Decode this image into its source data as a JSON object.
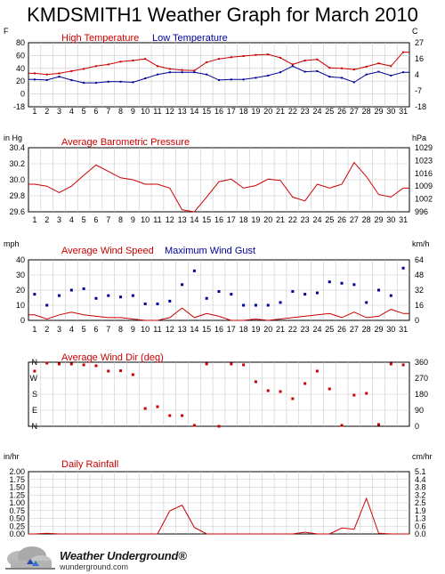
{
  "title": "KMDSMITH1 Weather Graph for March 2010",
  "footer": {
    "brand": "Weather Underground®",
    "url": "wunderground.com",
    "logo_icon": "cloud-logo-icon"
  },
  "colors": {
    "red": "#cc0000",
    "blue": "#000099",
    "grid": "#c8c8c8",
    "frame": "#000000"
  },
  "chart_data": [
    {
      "id": "temperature",
      "type": "line",
      "left_unit": "F",
      "right_unit": "C",
      "title_a": "High Temperature",
      "title_b": "Low Temperature",
      "yticks_left": [
        "80",
        "60",
        "40",
        "20",
        "0",
        "-18"
      ],
      "yticks_right": [
        "27",
        "16",
        "4",
        "-7",
        "-18"
      ],
      "ylim": [
        -18,
        97
      ],
      "x": [
        "1",
        "2",
        "3",
        "4",
        "5",
        "6",
        "7",
        "8",
        "9",
        "10",
        "11",
        "12",
        "13",
        "14",
        "15",
        "16",
        "17",
        "18",
        "19",
        "20",
        "21",
        "22",
        "23",
        "24",
        "25",
        "26",
        "27",
        "28",
        "29",
        "30",
        "31"
      ],
      "series": [
        {
          "name": "High Temperature",
          "color": "#cc0000",
          "values": [
            42,
            40,
            42,
            46,
            50,
            55,
            58,
            63,
            65,
            68,
            55,
            50,
            48,
            47,
            62,
            68,
            71,
            73,
            75,
            76,
            70,
            58,
            65,
            67,
            52,
            51,
            49,
            54,
            60,
            55,
            80
          ]
        },
        {
          "name": "Low Temperature",
          "color": "#000099",
          "values": [
            31,
            30,
            36,
            30,
            25,
            25,
            27,
            27,
            26,
            33,
            40,
            44,
            44,
            44,
            40,
            30,
            31,
            31,
            34,
            38,
            44,
            55,
            45,
            46,
            36,
            34,
            26,
            40,
            45,
            38,
            44
          ]
        }
      ]
    },
    {
      "id": "pressure",
      "type": "line",
      "left_unit": "in Hg",
      "right_unit": "hPa",
      "title_a": "Average Barometric Pressure",
      "yticks_left": [
        "30.4",
        "30.2",
        "30.0",
        "29.8",
        "29.6"
      ],
      "yticks_right": [
        "1029",
        "1023",
        "1016",
        "1009",
        "1002",
        "996"
      ],
      "ylim": [
        29.45,
        30.45
      ],
      "x": [
        "1",
        "2",
        "3",
        "4",
        "5",
        "6",
        "7",
        "8",
        "9",
        "10",
        "11",
        "12",
        "13",
        "14",
        "15",
        "16",
        "17",
        "18",
        "19",
        "20",
        "21",
        "22",
        "23",
        "24",
        "25",
        "26",
        "27",
        "28",
        "29",
        "30",
        "31"
      ],
      "series": [
        {
          "name": "Average Barometric Pressure",
          "color": "#cc0000",
          "values": [
            29.88,
            29.85,
            29.75,
            29.85,
            30.02,
            30.18,
            30.08,
            29.98,
            29.95,
            29.88,
            29.88,
            29.82,
            29.48,
            29.45,
            29.68,
            29.92,
            29.96,
            29.82,
            29.86,
            29.96,
            29.94,
            29.68,
            29.62,
            29.88,
            29.82,
            29.88,
            30.22,
            30.0,
            29.72,
            29.68,
            29.82
          ]
        }
      ]
    },
    {
      "id": "wind",
      "type": "line",
      "left_unit": "mph",
      "right_unit": "km/h",
      "title_a": "Average Wind Speed",
      "title_b": "Maximum Wind Gust",
      "yticks_left": [
        "40",
        "30",
        "20",
        "10",
        "0"
      ],
      "yticks_right": [
        "64",
        "48",
        "32",
        "16",
        "0"
      ],
      "ylim": [
        0,
        44
      ],
      "x": [
        "1",
        "2",
        "3",
        "4",
        "5",
        "6",
        "7",
        "8",
        "9",
        "10",
        "11",
        "12",
        "13",
        "14",
        "15",
        "16",
        "17",
        "18",
        "19",
        "20",
        "21",
        "22",
        "23",
        "24",
        "25",
        "26",
        "27",
        "28",
        "29",
        "30",
        "31"
      ],
      "series": [
        {
          "name": "Average Wind Speed",
          "color": "#cc0000",
          "values": [
            4,
            1,
            4,
            6,
            4,
            3,
            2,
            2,
            1,
            0,
            0,
            2,
            9,
            2,
            5,
            3,
            0,
            0,
            1,
            0,
            1,
            2,
            3,
            4,
            5,
            2,
            6,
            2,
            3,
            8,
            5
          ]
        },
        {
          "name": "Maximum Wind Gust",
          "color": "#000099",
          "values": [
            19,
            11,
            18,
            22,
            23,
            16,
            18,
            17,
            18,
            12,
            12,
            14,
            26,
            36,
            16,
            21,
            19,
            11,
            11,
            11,
            13,
            21,
            19,
            20,
            28,
            27,
            26,
            13,
            22,
            18,
            38
          ]
        }
      ]
    },
    {
      "id": "direction",
      "type": "scatter",
      "left_unit": "",
      "right_unit": "",
      "title_a": "Average Wind Dir (deg)",
      "yticks_left": [
        "N",
        "W",
        "S",
        "E",
        "N"
      ],
      "yticks_right": [
        "360",
        "270",
        "180",
        "90",
        "0"
      ],
      "ylim": [
        0,
        360
      ],
      "x": [
        "1",
        "2",
        "3",
        "4",
        "5",
        "6",
        "7",
        "8",
        "9",
        "10",
        "11",
        "12",
        "13",
        "14",
        "15",
        "16",
        "17",
        "18",
        "19",
        "20",
        "21",
        "22",
        "23",
        "24",
        "25",
        "26",
        "27",
        "28",
        "29",
        "30",
        "31"
      ],
      "series": [
        {
          "name": "Average Wind Dir (deg)",
          "color": "#cc0000",
          "values": [
            310,
            355,
            350,
            350,
            345,
            340,
            310,
            312,
            290,
            100,
            110,
            60,
            60,
            5,
            350,
            0,
            350,
            345,
            250,
            200,
            195,
            155,
            240,
            310,
            210,
            5,
            175,
            185,
            10,
            350,
            345
          ]
        }
      ]
    },
    {
      "id": "rainfall",
      "type": "line",
      "left_unit": "in/hr",
      "right_unit": "cm/hr",
      "title_a": "Daily Rainfall",
      "yticks_left": [
        "2.00",
        "1.75",
        "1.50",
        "1.25",
        "1.00",
        "0.75",
        "0.50",
        "0.25",
        "0.00"
      ],
      "yticks_right": [
        "5.1",
        "4.4",
        "3.8",
        "3.2",
        "2.5",
        "1.9",
        "1.3",
        "0.6",
        "0.0"
      ],
      "ylim": [
        0,
        2.1
      ],
      "x": [
        "1",
        "2",
        "3",
        "4",
        "5",
        "6",
        "7",
        "8",
        "9",
        "10",
        "11",
        "12",
        "13",
        "14",
        "15",
        "16",
        "17",
        "18",
        "19",
        "20",
        "21",
        "22",
        "23",
        "24",
        "25",
        "26",
        "27",
        "28",
        "29",
        "30",
        "31"
      ],
      "series": [
        {
          "name": "Daily Rainfall",
          "color": "#cc0000",
          "values": [
            0,
            0.02,
            0,
            0,
            0,
            0,
            0,
            0,
            0,
            0,
            0,
            0.78,
            0.97,
            0.22,
            0,
            0,
            0,
            0,
            0,
            0,
            0,
            0,
            0.06,
            0,
            0,
            0.2,
            0.16,
            1.2,
            0.02,
            0,
            0
          ]
        }
      ]
    }
  ]
}
